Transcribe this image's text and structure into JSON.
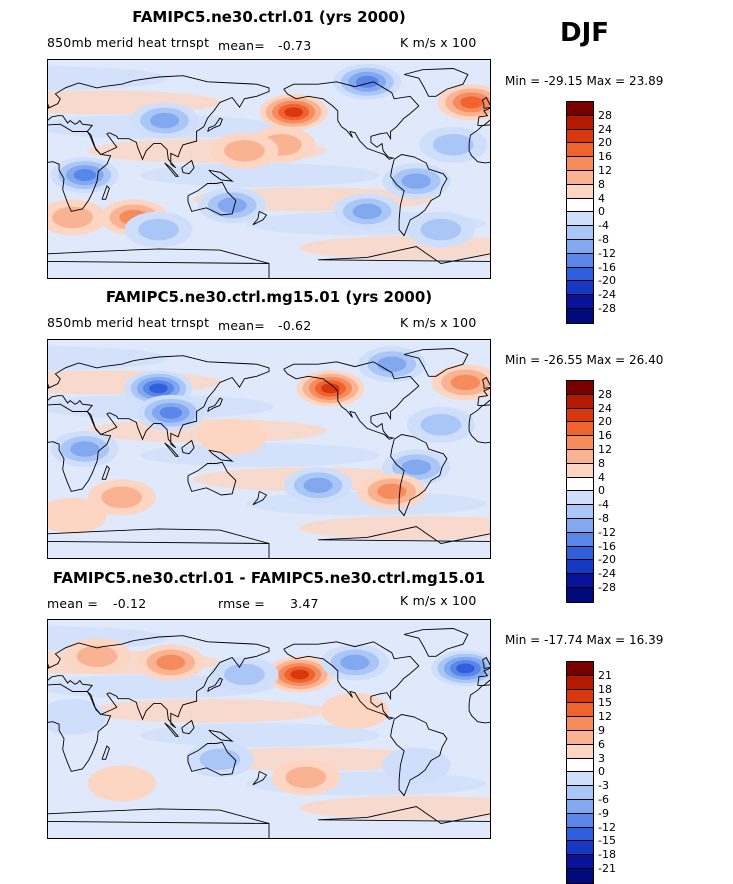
{
  "season": "DJF",
  "panels": [
    {
      "title": "FAMIPC5.ne30.ctrl.01 (yrs 2000)",
      "left_label": "850mb merid heat trnspt",
      "mean_label": "mean=",
      "mean_value": "-0.73",
      "units": "K m/s x 100",
      "min_label": "Min =",
      "min_value": "-29.15",
      "max_label": "Max =",
      "max_value": "23.89",
      "colorbar_levels": [
        "28",
        "24",
        "20",
        "16",
        "12",
        "8",
        "4",
        "0",
        "-4",
        "-8",
        "-12",
        "-16",
        "-20",
        "-24",
        "-28"
      ]
    },
    {
      "title": "FAMIPC5.ne30.ctrl.mg15.01 (yrs 2000)",
      "left_label": "850mb merid heat trnspt",
      "mean_label": "mean=",
      "mean_value": "-0.62",
      "units": "K m/s x 100",
      "min_label": "Min =",
      "min_value": "-26.55",
      "max_label": "Max =",
      "max_value": "26.40",
      "colorbar_levels": [
        "28",
        "24",
        "20",
        "16",
        "12",
        "8",
        "4",
        "0",
        "-4",
        "-8",
        "-12",
        "-16",
        "-20",
        "-24",
        "-28"
      ]
    },
    {
      "title": "FAMIPC5.ne30.ctrl.01 - FAMIPC5.ne30.ctrl.mg15.01",
      "left_label": "mean =",
      "mean_value": "-0.12",
      "rmse_label": "rmse =",
      "rmse_value": "3.47",
      "units": "K m/s x 100",
      "min_label": "Min =",
      "min_value": "-17.74",
      "max_label": "Max =",
      "max_value": "16.39",
      "colorbar_levels": [
        "21",
        "18",
        "15",
        "12",
        "9",
        "6",
        "3",
        "0",
        "-3",
        "-6",
        "-9",
        "-12",
        "-15",
        "-18",
        "-21"
      ]
    }
  ],
  "colors": {
    "scale": [
      "#7a0000",
      "#b31a00",
      "#d9380f",
      "#f0622e",
      "#f68c5e",
      "#f9b393",
      "#fcd6c2",
      "#ffffff",
      "#cfdffb",
      "#aac6f6",
      "#82a8f0",
      "#5a86ea",
      "#2f5fdc",
      "#1638c2",
      "#08129b",
      "#000a7a"
    ]
  },
  "chart_data": [
    {
      "type": "heatmap",
      "title": "FAMIPC5.ne30.ctrl.01 (yrs 2000)",
      "field": "850mb merid heat trnspt",
      "units": "K m/s x 100",
      "mean": -0.73,
      "min": -29.15,
      "max": 23.89,
      "contour_levels": [
        -28,
        -24,
        -20,
        -16,
        -12,
        -8,
        -4,
        0,
        4,
        8,
        12,
        16,
        20,
        24,
        28
      ],
      "blobs": [
        {
          "lon": -160,
          "lat": 47,
          "value": 22
        },
        {
          "lon": -15,
          "lat": 55,
          "value": 18
        },
        {
          "lon": -170,
          "lat": 20,
          "value": 8
        },
        {
          "lon": 30,
          "lat": -5,
          "value": -18
        },
        {
          "lon": 95,
          "lat": 40,
          "value": -14
        },
        {
          "lon": -100,
          "lat": 72,
          "value": -16
        },
        {
          "lon": -60,
          "lat": -10,
          "value": -14
        },
        {
          "lon": 150,
          "lat": -30,
          "value": -14
        },
        {
          "lon": 20,
          "lat": -40,
          "value": 10
        },
        {
          "lon": 70,
          "lat": -40,
          "value": 12
        },
        {
          "lon": -100,
          "lat": -35,
          "value": -12
        },
        {
          "lon": -30,
          "lat": 20,
          "value": -8
        },
        {
          "lon": 160,
          "lat": 15,
          "value": 8
        },
        {
          "lon": 90,
          "lat": -50,
          "value": -10
        },
        {
          "lon": -40,
          "lat": -50,
          "value": -8
        }
      ]
    },
    {
      "type": "heatmap",
      "title": "FAMIPC5.ne30.ctrl.mg15.01 (yrs 2000)",
      "field": "850mb merid heat trnspt",
      "units": "K m/s x 100",
      "mean": -0.62,
      "min": -26.55,
      "max": 26.4,
      "contour_levels": [
        -28,
        -24,
        -20,
        -16,
        -12,
        -8,
        -4,
        0,
        4,
        8,
        12,
        16,
        20,
        24,
        28
      ],
      "blobs": [
        {
          "lon": -130,
          "lat": 50,
          "value": 20
        },
        {
          "lon": -20,
          "lat": 55,
          "value": 12
        },
        {
          "lon": 90,
          "lat": 50,
          "value": -20
        },
        {
          "lon": 100,
          "lat": 30,
          "value": -16
        },
        {
          "lon": 30,
          "lat": 0,
          "value": -14
        },
        {
          "lon": -60,
          "lat": -15,
          "value": -14
        },
        {
          "lon": -140,
          "lat": -30,
          "value": -12
        },
        {
          "lon": -80,
          "lat": -35,
          "value": 14
        },
        {
          "lon": -80,
          "lat": 70,
          "value": -12
        },
        {
          "lon": 150,
          "lat": 10,
          "value": 6
        },
        {
          "lon": 60,
          "lat": -40,
          "value": 8
        },
        {
          "lon": -40,
          "lat": 20,
          "value": -8
        },
        {
          "lon": 20,
          "lat": -55,
          "value": 6
        }
      ]
    },
    {
      "type": "heatmap",
      "title": "FAMIPC5.ne30.ctrl.01 - FAMIPC5.ne30.ctrl.mg15.01",
      "units": "K m/s x 100",
      "mean": -0.12,
      "rmse": 3.47,
      "min": -17.74,
      "max": 16.39,
      "contour_levels": [
        -21,
        -18,
        -15,
        -12,
        -9,
        -6,
        -3,
        0,
        3,
        6,
        9,
        12,
        15,
        18,
        21
      ],
      "blobs": [
        {
          "lon": -155,
          "lat": 45,
          "value": 15
        },
        {
          "lon": -20,
          "lat": 50,
          "value": -15
        },
        {
          "lon": -110,
          "lat": 55,
          "value": -10
        },
        {
          "lon": 160,
          "lat": 45,
          "value": -6
        },
        {
          "lon": 100,
          "lat": 55,
          "value": 9
        },
        {
          "lon": 40,
          "lat": 60,
          "value": 6
        },
        {
          "lon": 140,
          "lat": -25,
          "value": -6
        },
        {
          "lon": -150,
          "lat": -40,
          "value": 6
        },
        {
          "lon": -110,
          "lat": 15,
          "value": 5
        },
        {
          "lon": 60,
          "lat": -45,
          "value": 5
        },
        {
          "lon": -60,
          "lat": -30,
          "value": -4
        },
        {
          "lon": 20,
          "lat": 10,
          "value": -4
        }
      ]
    }
  ]
}
